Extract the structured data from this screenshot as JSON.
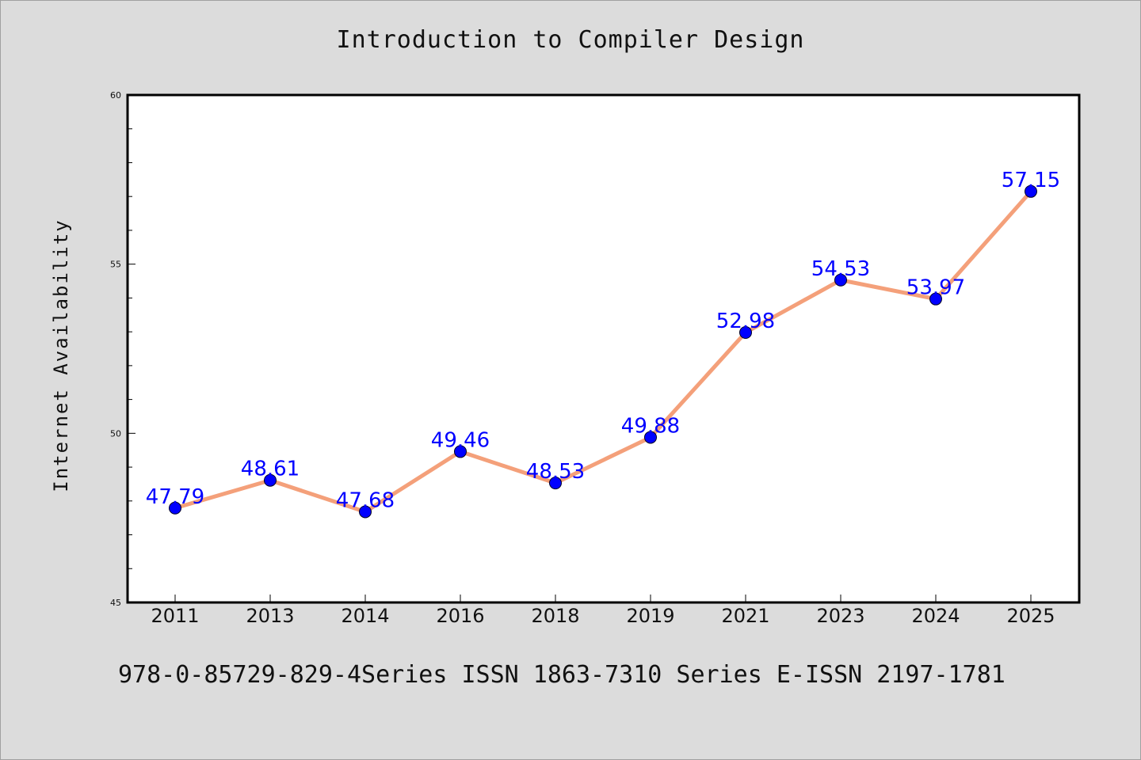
{
  "chart_data": {
    "type": "line",
    "title": "Introduction to Compiler Design",
    "xlabel": "",
    "ylabel": "Internet Availability",
    "categories": [
      "2011",
      "2013",
      "2014",
      "2016",
      "2018",
      "2019",
      "2021",
      "2023",
      "2024",
      "2025"
    ],
    "series": [
      {
        "values": [
          47.79,
          48.61,
          47.68,
          49.46,
          48.53,
          49.88,
          52.98,
          54.53,
          53.97,
          57.15
        ],
        "data_labels": [
          "47.79",
          "48.61",
          "47.68",
          "49.46",
          "48.53",
          "49.88",
          "52.98",
          "54.53",
          "53.97",
          "57.15"
        ],
        "line_color": "#f4a07a",
        "marker_color": "#0000ff"
      }
    ],
    "ylim": [
      45,
      60
    ],
    "y_ticks": [
      "45",
      "50",
      "55",
      "60"
    ],
    "grid": false,
    "legend": "none"
  },
  "footer": {
    "text": "978-0-85729-829-4Series ISSN 1863-7310 Series E-ISSN 2197-1781"
  },
  "colors": {
    "background": "#dcdcdc",
    "plot_background": "#ffffff",
    "line": "#f4a07a",
    "marker": "#0000ff",
    "data_label": "#0000ff"
  }
}
